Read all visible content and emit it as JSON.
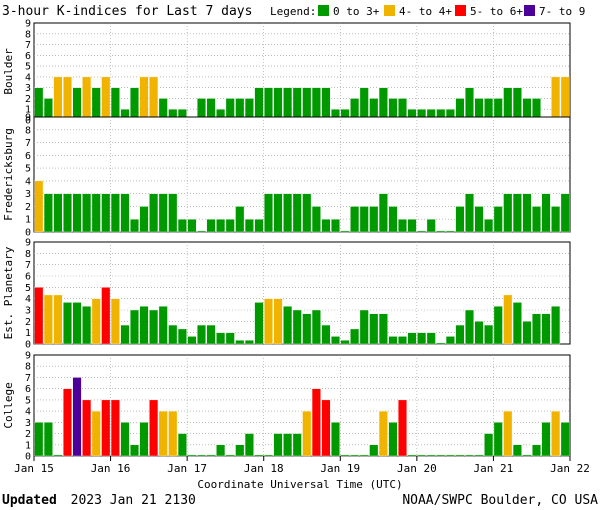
{
  "chart_data": {
    "type": "bar",
    "title": "3-hour K-indices for Last 7 days",
    "legend_title": "Legend:",
    "legend": [
      {
        "label": "0 to 3+",
        "color": "#009900"
      },
      {
        "label": "4- to 4+",
        "color": "#f0b400"
      },
      {
        "label": "5- to 6+",
        "color": "#ff0000"
      },
      {
        "label": "7- to 9",
        "color": "#4d0099"
      }
    ],
    "color_thresholds": [
      4,
      5,
      7
    ],
    "y_ticks": [
      "0",
      "1",
      "2",
      "3",
      "4",
      "5",
      "6",
      "7",
      "8",
      "9"
    ],
    "ylim": [
      0,
      9
    ],
    "x_ticks": [
      "Jan 15",
      "Jan 16",
      "Jan 17",
      "Jan 18",
      "Jan 19",
      "Jan 20",
      "Jan 21",
      "Jan 22"
    ],
    "xlabel": "Coordinate Universal Time (UTC)",
    "grid": true,
    "series": [
      {
        "name": "Boulder",
        "values": [
          3,
          2,
          4,
          4,
          3,
          4,
          3,
          4,
          3,
          1,
          3,
          4,
          4,
          2,
          1,
          1,
          0,
          2,
          2,
          1,
          2,
          2,
          2,
          3,
          3,
          3,
          3,
          3,
          3,
          3,
          3,
          1,
          1,
          2,
          3,
          2,
          3,
          2,
          2,
          1,
          1,
          1,
          1,
          1,
          2,
          3,
          2,
          2,
          2,
          3,
          3,
          2,
          2,
          0,
          4,
          4,
          0
        ]
      },
      {
        "name": "Fredericksburg",
        "values": [
          4,
          3,
          3,
          3,
          3,
          3,
          3,
          3,
          3,
          3,
          1,
          2,
          3,
          3,
          3,
          1,
          1,
          0,
          1,
          1,
          1,
          2,
          1,
          1,
          3,
          3,
          3,
          3,
          3,
          2,
          1,
          1,
          0,
          2,
          2,
          2,
          3,
          2,
          1,
          1,
          0,
          1,
          0,
          0,
          2,
          3,
          2,
          1,
          2,
          3,
          3,
          3,
          2,
          3,
          2,
          3,
          0
        ]
      },
      {
        "name": "Est. Planetary",
        "values": [
          5,
          4.33,
          4.33,
          3.67,
          3.67,
          3.33,
          4,
          5,
          4,
          1.67,
          3,
          3.33,
          3,
          3.33,
          1.67,
          1.33,
          0.67,
          1.67,
          1.67,
          1,
          1,
          0.33,
          0.33,
          3.67,
          4,
          4,
          3.33,
          3,
          2.67,
          3,
          1.67,
          0.67,
          0.33,
          1.33,
          3,
          2.67,
          2.67,
          0.67,
          0.67,
          1,
          1,
          1,
          0,
          0.67,
          1.67,
          3,
          2,
          1.67,
          3.33,
          4.33,
          3.67,
          2,
          2.67,
          2.67,
          3.33
        ]
      },
      {
        "name": "College",
        "values": [
          3,
          3,
          0,
          6,
          7,
          5,
          4,
          5,
          5,
          3,
          1,
          3,
          5,
          4,
          4,
          2,
          0,
          0,
          0,
          1,
          0,
          1,
          2,
          0,
          0,
          2,
          2,
          2,
          4,
          6,
          5,
          3,
          0,
          0,
          0,
          1,
          4,
          3,
          5,
          0,
          0,
          0,
          0,
          0,
          0,
          0,
          0,
          2,
          3,
          4,
          1,
          0,
          1,
          3,
          4,
          3,
          4,
          3,
          4,
          0
        ]
      }
    ]
  },
  "footer": {
    "updated_label": "Updated",
    "updated_value": "2023 Jan 21 2130",
    "credit": "NOAA/SWPC Boulder, CO USA"
  }
}
